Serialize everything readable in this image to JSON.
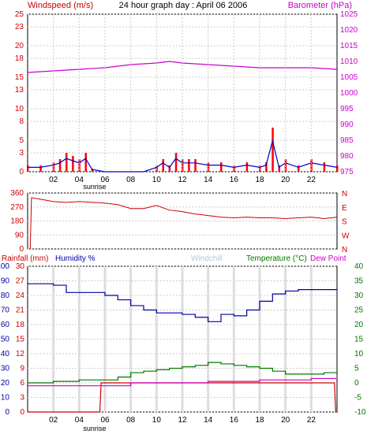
{
  "header": {
    "left_label": "Windspeed (m/s)",
    "title": "24 hour graph day : April 06 2006",
    "right_label": "Barometer (hPa)"
  },
  "colors": {
    "wind_bars": "#ff0000",
    "wind_line": "#0000cc",
    "barometer": "#cc00cc",
    "direction": "#cc0000",
    "humidity": "#0000aa",
    "temperature": "#007700",
    "dewpoint": "#cc00cc",
    "rain": "#cc0000",
    "windchill": "#aaccdd",
    "grid": "#cccccc"
  },
  "x_ticks": [
    "02",
    "04",
    "06",
    "08",
    "10",
    "12",
    "14",
    "16",
    "18",
    "20",
    "22"
  ],
  "sunrise_label": "sunrise",
  "chart_data": [
    {
      "type": "bar",
      "name": "windspeed-barometer",
      "title": "24 hour graph day : April 06 2006",
      "ylabel": "Windspeed (m/s)",
      "y2label": "Barometer (hPa)",
      "ylim": [
        0,
        25
      ],
      "y2lim": [
        975,
        1025
      ],
      "yticks": [
        0,
        3,
        5,
        8,
        10,
        13,
        15,
        18,
        20,
        23,
        25
      ],
      "y2ticks": [
        975,
        980,
        985,
        990,
        995,
        1000,
        1005,
        1010,
        1015,
        1020,
        1025
      ],
      "x_range": [
        0,
        24
      ],
      "grid": true,
      "series": [
        {
          "name": "Windspeed (m/s)",
          "x": [
            0,
            1,
            2,
            2.5,
            3,
            3.5,
            4,
            4.5,
            5,
            6,
            7,
            8,
            9,
            10,
            10.5,
            11,
            11.5,
            12,
            12.5,
            13,
            14,
            15,
            16,
            17,
            18,
            18.5,
            19,
            19.5,
            20,
            21,
            22,
            23,
            24
          ],
          "values": [
            1,
            1,
            1.5,
            2,
            3,
            2.5,
            2,
            3,
            0.5,
            0,
            0,
            0,
            0,
            1,
            2,
            1,
            3,
            2,
            2,
            2,
            1.5,
            1.5,
            1,
            1.5,
            1,
            1.5,
            7,
            1,
            2,
            1,
            2,
            1.5,
            1
          ]
        },
        {
          "name": "Barometer (hPa)",
          "x": [
            0,
            2,
            4,
            6,
            8,
            10,
            11,
            12,
            14,
            16,
            18,
            20,
            22,
            24
          ],
          "values": [
            1006.5,
            1007,
            1007.5,
            1008,
            1009,
            1009.5,
            1010,
            1009.5,
            1009,
            1008.5,
            1008,
            1008,
            1008,
            1007.5
          ]
        }
      ]
    },
    {
      "type": "line",
      "name": "wind-direction",
      "ylim": [
        0,
        360
      ],
      "yticks": [
        0,
        90,
        180,
        270,
        360
      ],
      "y2ticks": [
        "N",
        "E",
        "S",
        "W",
        "N"
      ],
      "x_range": [
        0,
        24
      ],
      "series": [
        {
          "name": "Wind direction",
          "x": [
            0.3,
            1,
            2,
            3,
            4,
            5,
            6,
            7,
            8,
            9,
            10,
            11,
            12,
            13,
            14,
            15,
            16,
            17,
            18,
            19,
            20,
            21,
            22,
            23,
            24
          ],
          "values": [
            330,
            320,
            305,
            300,
            305,
            300,
            295,
            285,
            260,
            260,
            280,
            250,
            240,
            225,
            215,
            205,
            200,
            205,
            200,
            200,
            195,
            200,
            205,
            195,
            205
          ]
        }
      ]
    },
    {
      "type": "line",
      "name": "rain-humidity-temperature",
      "labels": {
        "rainfall": "Rainfall (mm)",
        "humidity": "Humidity %",
        "windchill": "Windchill",
        "temperature": "Temperature (°C)",
        "dewpoint": "Dew Point"
      },
      "rain_ticks": [
        0,
        3,
        6,
        9,
        12,
        15,
        18,
        21,
        24,
        27,
        30
      ],
      "humidity_ticks": [
        0,
        10,
        20,
        30,
        40,
        50,
        60,
        70,
        80,
        90,
        100
      ],
      "temp_ticks": [
        -10,
        -5,
        0,
        5,
        10,
        15,
        20,
        25,
        30,
        35,
        40
      ],
      "humidity_lim": [
        0,
        100
      ],
      "temp_lim": [
        -10,
        40
      ],
      "x_range": [
        0,
        24
      ],
      "series": [
        {
          "name": "Humidity %",
          "x": [
            0,
            2,
            3,
            4,
            5,
            6,
            7,
            8,
            9,
            10,
            11,
            12,
            13,
            14,
            15,
            16,
            17,
            18,
            19,
            20,
            21,
            22,
            23,
            24
          ],
          "values": [
            88,
            87,
            82,
            82,
            82,
            80,
            77,
            73,
            70,
            68,
            68,
            67,
            65,
            62,
            67,
            66,
            70,
            76,
            81,
            83,
            84,
            84,
            84,
            85
          ]
        },
        {
          "name": "Temperature (°C)",
          "x": [
            0,
            2,
            4,
            5,
            6,
            7,
            8,
            9,
            10,
            11,
            12,
            13,
            14,
            15,
            16,
            17,
            18,
            19,
            20,
            21,
            22,
            23,
            24
          ],
          "values": [
            0,
            0.5,
            1,
            1,
            1,
            2,
            3.5,
            4,
            4.5,
            5,
            5.5,
            6,
            7,
            6.5,
            6,
            5.5,
            5,
            4,
            3,
            3,
            3,
            3.5,
            3.5
          ]
        },
        {
          "name": "Dew Point",
          "x": [
            0,
            2,
            4,
            6,
            8,
            10,
            12,
            14,
            16,
            18,
            20,
            22,
            24
          ],
          "values": [
            -1,
            -1,
            -1,
            -1,
            0,
            0,
            0,
            0.5,
            0.5,
            1,
            1,
            1.5,
            2
          ]
        },
        {
          "name": "Rainfall (mm)",
          "x": [
            0,
            5.6,
            5.7,
            23.8,
            23.9,
            24
          ],
          "values": [
            0,
            0,
            6,
            6,
            0,
            0
          ]
        }
      ]
    }
  ]
}
